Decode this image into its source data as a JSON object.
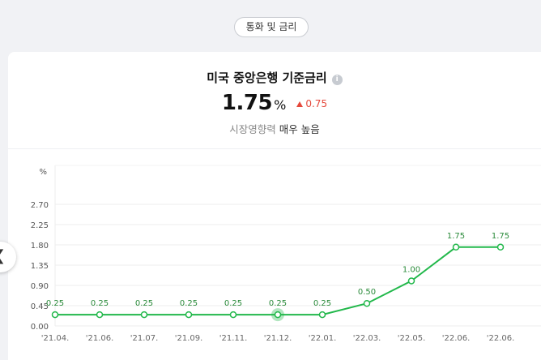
{
  "category_pill": "통화 및 금리",
  "header": {
    "title": "미국 중앙은행 기준금리",
    "info_icon": "info-icon",
    "rate_value": "1.75",
    "rate_unit": "%",
    "rate_change": "0.75",
    "influence_label": "시장영향력",
    "influence_value": "매우 높음"
  },
  "nav": {
    "prev_icon": "chevron-left-icon"
  },
  "colors": {
    "line": "#22b84b",
    "up": "#e5483b",
    "grid": "#eeeeee"
  },
  "chart_data": {
    "type": "line",
    "ylabel": "%",
    "yticks": [
      "2.70",
      "2.25",
      "1.80",
      "1.35",
      "0.90",
      "0.45",
      "0.00"
    ],
    "ytick_values": [
      2.7,
      2.25,
      1.8,
      1.35,
      0.9,
      0.45,
      0.0
    ],
    "ylim": [
      0,
      2.7
    ],
    "categories": [
      "'21.04.",
      "'21.06.",
      "'21.07.",
      "'21.09.",
      "'21.11.",
      "'21.12.",
      "'22.01.",
      "'22.03.",
      "'22.05.",
      "'22.06.",
      "'22.06."
    ],
    "values": [
      0.25,
      0.25,
      0.25,
      0.25,
      0.25,
      0.25,
      0.25,
      0.5,
      1.0,
      1.75,
      1.75
    ],
    "value_labels": [
      "0.25",
      "0.25",
      "0.25",
      "0.25",
      "0.25",
      "0.25",
      "0.25",
      "0.50",
      "1.00",
      "1.75",
      "1.75"
    ],
    "highlight_index": 5,
    "grid": true
  }
}
